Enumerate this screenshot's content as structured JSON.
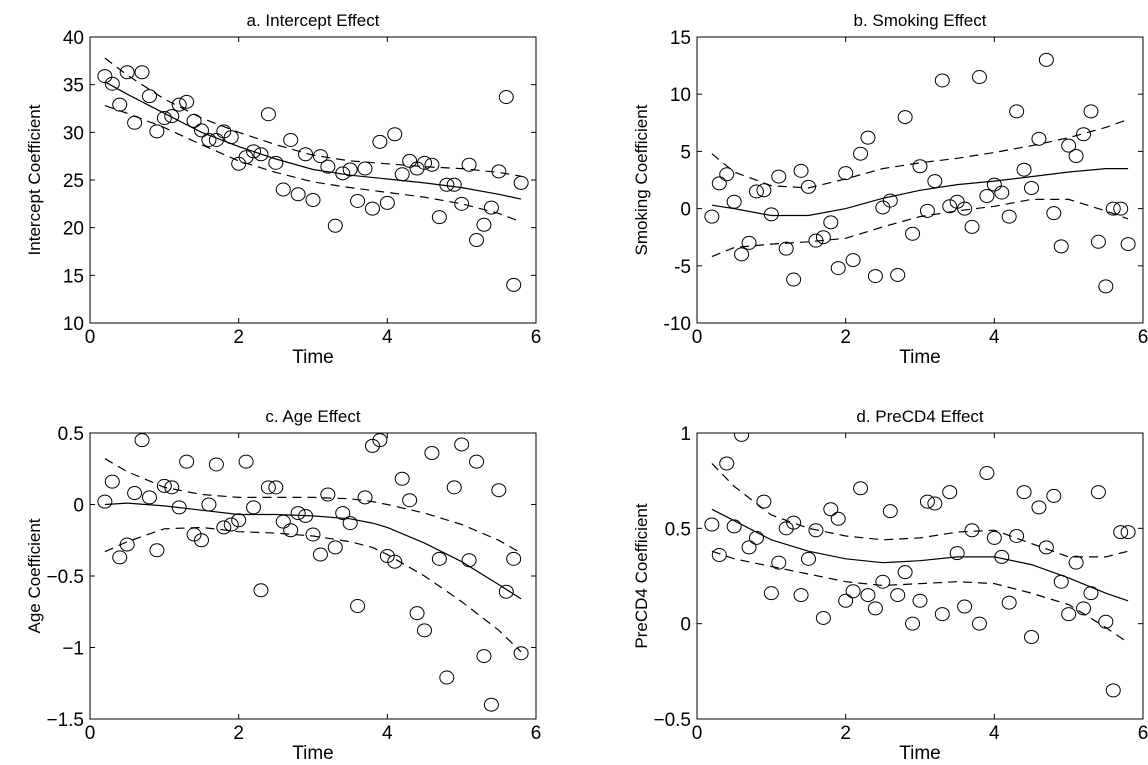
{
  "chart_data": [
    {
      "type": "scatter",
      "title": "a. Intercept Effect",
      "xlabel": "Time",
      "ylabel": "Intercept Coefficient",
      "xlim": [
        0,
        6
      ],
      "ylim": [
        10,
        40
      ],
      "xticks": [
        0,
        2,
        4,
        6
      ],
      "yticks": [
        10,
        15,
        20,
        25,
        30,
        35,
        40
      ],
      "grid": false,
      "points": {
        "x": [
          0.2,
          0.3,
          0.4,
          0.5,
          0.6,
          0.7,
          0.8,
          0.9,
          1.0,
          1.1,
          1.2,
          1.3,
          1.4,
          1.5,
          1.6,
          1.7,
          1.8,
          1.9,
          2.0,
          2.1,
          2.2,
          2.3,
          2.4,
          2.5,
          2.6,
          2.7,
          2.8,
          2.9,
          3.0,
          3.1,
          3.2,
          3.3,
          3.4,
          3.5,
          3.6,
          3.7,
          3.8,
          3.9,
          4.0,
          4.1,
          4.2,
          4.3,
          4.4,
          4.5,
          4.6,
          4.7,
          4.8,
          4.9,
          5.0,
          5.1,
          5.2,
          5.3,
          5.4,
          5.5,
          5.6,
          5.7,
          5.8
        ],
        "y": [
          35.9,
          35.1,
          32.9,
          36.3,
          31.0,
          36.3,
          33.8,
          30.1,
          31.5,
          31.7,
          32.9,
          33.2,
          31.2,
          30.2,
          29.2,
          29.2,
          30.1,
          29.5,
          26.7,
          27.4,
          28.0,
          27.7,
          31.9,
          26.8,
          24.0,
          29.2,
          23.5,
          27.7,
          22.9,
          27.5,
          26.4,
          20.2,
          25.7,
          26.1,
          22.8,
          26.2,
          22.0,
          29.0,
          22.6,
          29.8,
          25.6,
          27.0,
          26.2,
          26.8,
          26.6,
          21.1,
          24.5,
          24.5,
          22.5,
          26.6,
          18.7,
          20.3,
          22.1,
          25.9,
          33.7,
          14.0,
          24.7
        ]
      },
      "series": [
        {
          "style": "solid",
          "x": [
            0.2,
            0.5,
            1.0,
            1.5,
            2.0,
            2.5,
            3.0,
            3.5,
            4.0,
            4.5,
            5.0,
            5.5,
            5.8
          ],
          "y": [
            35.3,
            34.0,
            32.0,
            30.0,
            28.5,
            27.2,
            26.1,
            25.5,
            25.1,
            24.7,
            24.2,
            23.5,
            23.0
          ]
        },
        {
          "style": "dashed",
          "x": [
            0.2,
            0.5,
            1.0,
            1.5,
            2.0,
            2.5,
            3.0,
            3.5,
            4.0,
            4.5,
            5.0,
            5.5,
            5.8
          ],
          "y": [
            37.8,
            36.0,
            33.5,
            31.5,
            30.0,
            28.7,
            27.6,
            27.0,
            26.7,
            26.4,
            26.2,
            25.8,
            25.4
          ]
        },
        {
          "style": "dashed",
          "x": [
            0.2,
            0.5,
            1.0,
            1.5,
            2.0,
            2.5,
            3.0,
            3.5,
            4.0,
            4.5,
            5.0,
            5.5,
            5.8
          ],
          "y": [
            32.8,
            32.0,
            30.5,
            28.7,
            27.0,
            25.8,
            24.8,
            24.2,
            23.7,
            23.2,
            22.5,
            21.5,
            20.6
          ]
        }
      ]
    },
    {
      "type": "scatter",
      "title": "b. Smoking Effect",
      "xlabel": "Time",
      "ylabel": "Smoking Coefficient",
      "xlim": [
        0,
        6
      ],
      "ylim": [
        -10,
        15
      ],
      "xticks": [
        0,
        2,
        4,
        6
      ],
      "yticks": [
        -10,
        -5,
        0,
        5,
        10,
        15
      ],
      "grid": false,
      "points": {
        "x": [
          0.2,
          0.3,
          0.4,
          0.5,
          0.6,
          0.7,
          0.8,
          0.9,
          1.0,
          1.1,
          1.2,
          1.3,
          1.4,
          1.5,
          1.6,
          1.7,
          1.8,
          1.9,
          2.0,
          2.1,
          2.2,
          2.3,
          2.4,
          2.5,
          2.6,
          2.7,
          2.8,
          2.9,
          3.0,
          3.1,
          3.2,
          3.3,
          3.4,
          3.5,
          3.6,
          3.7,
          3.8,
          3.9,
          4.0,
          4.1,
          4.2,
          4.3,
          4.4,
          4.5,
          4.6,
          4.7,
          4.8,
          4.9,
          5.0,
          5.1,
          5.2,
          5.3,
          5.4,
          5.5,
          5.6,
          5.7,
          5.8
        ],
        "y": [
          -0.7,
          2.2,
          3.0,
          0.6,
          -4.0,
          -3.0,
          1.5,
          1.6,
          -0.5,
          2.8,
          -3.5,
          -6.2,
          3.3,
          1.9,
          -2.8,
          -2.5,
          -1.2,
          -5.2,
          3.1,
          -4.5,
          4.8,
          6.2,
          -5.9,
          0.1,
          0.7,
          -5.8,
          8.0,
          -2.2,
          3.7,
          -0.2,
          2.4,
          11.2,
          0.2,
          0.6,
          0.0,
          -1.6,
          11.5,
          1.1,
          2.1,
          1.4,
          -0.7,
          8.5,
          3.4,
          1.8,
          6.1,
          13.0,
          -0.4,
          -3.3,
          5.5,
          4.6,
          6.5,
          8.5,
          -2.9,
          -6.8,
          0,
          0,
          -3.1
        ]
      },
      "series": [
        {
          "style": "solid",
          "x": [
            0.2,
            0.5,
            1.0,
            1.5,
            2.0,
            2.5,
            3.0,
            3.5,
            4.0,
            4.5,
            5.0,
            5.5,
            5.8
          ],
          "y": [
            0.3,
            0.0,
            -0.6,
            -0.6,
            0.0,
            0.9,
            1.6,
            2.1,
            2.4,
            2.8,
            3.2,
            3.5,
            3.5
          ]
        },
        {
          "style": "dashed",
          "x": [
            0.2,
            0.5,
            1.0,
            1.5,
            2.0,
            2.5,
            3.0,
            3.5,
            4.0,
            4.5,
            5.0,
            5.5,
            5.8
          ],
          "y": [
            4.8,
            3.2,
            2.0,
            1.8,
            2.6,
            3.5,
            4.0,
            4.4,
            4.9,
            5.5,
            6.2,
            7.1,
            7.8
          ]
        },
        {
          "style": "dashed",
          "x": [
            0.2,
            0.5,
            1.0,
            1.5,
            2.0,
            2.5,
            3.0,
            3.5,
            4.0,
            4.5,
            5.0,
            5.5,
            5.8
          ],
          "y": [
            -4.2,
            -3.4,
            -3.1,
            -2.9,
            -2.6,
            -1.6,
            -0.7,
            -0.2,
            0.2,
            0.8,
            0.8,
            -0.2,
            -0.9
          ]
        }
      ]
    },
    {
      "type": "scatter",
      "title": "c. Age  Effect",
      "xlabel": "Time",
      "ylabel": "Age Coefficient",
      "xlim": [
        0,
        6
      ],
      "ylim": [
        -1.5,
        0.5
      ],
      "xticks": [
        0,
        2,
        4,
        6
      ],
      "yticks": [
        -1.5,
        -1,
        -0.5,
        0,
        0.5
      ],
      "yticklabels": [
        "−1.5",
        "−1",
        "−0.5",
        "0",
        "0.5"
      ],
      "grid": false,
      "points": {
        "x": [
          0.2,
          0.3,
          0.4,
          0.5,
          0.6,
          0.7,
          0.8,
          0.9,
          1.0,
          1.1,
          1.2,
          1.3,
          1.4,
          1.5,
          1.6,
          1.7,
          1.8,
          1.9,
          2.0,
          2.1,
          2.2,
          2.3,
          2.4,
          2.5,
          2.6,
          2.7,
          2.8,
          2.9,
          3.0,
          3.1,
          3.2,
          3.3,
          3.4,
          3.5,
          3.6,
          3.7,
          3.8,
          3.9,
          4.0,
          4.1,
          4.2,
          4.3,
          4.4,
          4.5,
          4.6,
          4.7,
          4.8,
          4.9,
          5.0,
          5.1,
          5.2,
          5.3,
          5.4,
          5.5,
          5.6,
          5.7,
          5.8
        ],
        "y": [
          0.02,
          0.16,
          -0.37,
          -0.28,
          0.08,
          0.45,
          0.05,
          -0.32,
          0.13,
          0.12,
          -0.02,
          0.3,
          -0.21,
          -0.25,
          0.0,
          0.28,
          -0.16,
          -0.14,
          -0.11,
          0.3,
          -0.02,
          -0.6,
          0.12,
          0.12,
          -0.12,
          -0.18,
          -0.06,
          -0.08,
          -0.21,
          -0.35,
          0.07,
          -0.3,
          -0.06,
          -0.13,
          -0.71,
          0.05,
          0.41,
          0.45,
          -0.36,
          -0.4,
          0.18,
          0.03,
          -0.76,
          -0.88,
          0.36,
          -0.38,
          -1.21,
          0.12,
          0.42,
          -0.39,
          0.3,
          -1.06,
          -1.4,
          0.1,
          -0.61,
          -0.38,
          -1.04
        ]
      },
      "series": [
        {
          "style": "solid",
          "x": [
            0.2,
            0.5,
            1.0,
            1.5,
            2.0,
            2.5,
            3.0,
            3.5,
            3.8,
            4.0,
            4.5,
            5.0,
            5.5,
            5.8
          ],
          "y": [
            0.0,
            0.01,
            -0.01,
            -0.04,
            -0.07,
            -0.07,
            -0.08,
            -0.1,
            -0.13,
            -0.16,
            -0.27,
            -0.4,
            -0.56,
            -0.66
          ]
        },
        {
          "style": "dashed",
          "x": [
            0.2,
            0.5,
            1.0,
            1.5,
            2.0,
            2.5,
            3.0,
            3.5,
            3.8,
            4.0,
            4.5,
            5.0,
            5.5,
            5.8
          ],
          "y": [
            0.32,
            0.23,
            0.12,
            0.07,
            0.05,
            0.05,
            0.05,
            0.04,
            0.02,
            0.0,
            -0.06,
            -0.14,
            -0.25,
            -0.34
          ]
        },
        {
          "style": "dashed",
          "x": [
            0.2,
            0.5,
            1.0,
            1.5,
            2.0,
            2.5,
            3.0,
            3.5,
            3.8,
            4.0,
            4.5,
            5.0,
            5.5,
            5.8
          ],
          "y": [
            -0.33,
            -0.26,
            -0.17,
            -0.16,
            -0.19,
            -0.2,
            -0.22,
            -0.26,
            -0.3,
            -0.35,
            -0.5,
            -0.68,
            -0.88,
            -1.03
          ]
        }
      ]
    },
    {
      "type": "scatter",
      "title": "d. PreCD4 Effect",
      "xlabel": "Time",
      "ylabel": "PreCD4 Coefficient",
      "xlim": [
        0,
        6
      ],
      "ylim": [
        -0.5,
        1
      ],
      "xticks": [
        0,
        2,
        4,
        6
      ],
      "yticks": [
        -0.5,
        0,
        0.5,
        1
      ],
      "yticklabels": [
        "−0.5",
        "0",
        "0.5",
        "1"
      ],
      "grid": false,
      "points": {
        "x": [
          0.2,
          0.3,
          0.4,
          0.5,
          0.6,
          0.7,
          0.8,
          0.9,
          1.0,
          1.1,
          1.2,
          1.3,
          1.4,
          1.5,
          1.6,
          1.7,
          1.8,
          1.9,
          2.0,
          2.1,
          2.2,
          2.3,
          2.4,
          2.5,
          2.6,
          2.7,
          2.8,
          2.9,
          3.0,
          3.1,
          3.2,
          3.3,
          3.4,
          3.5,
          3.6,
          3.7,
          3.8,
          3.9,
          4.0,
          4.1,
          4.2,
          4.3,
          4.4,
          4.5,
          4.6,
          4.7,
          4.8,
          4.9,
          5.0,
          5.1,
          5.2,
          5.3,
          5.4,
          5.5,
          5.6,
          5.7,
          5.8
        ],
        "y": [
          0.52,
          0.36,
          0.84,
          0.51,
          0.99,
          0.4,
          0.45,
          0.64,
          0.16,
          0.32,
          0.5,
          0.53,
          0.15,
          0.34,
          0.49,
          0.03,
          0.6,
          0.55,
          0.12,
          0.17,
          0.71,
          0.15,
          0.08,
          0.22,
          0.59,
          0.15,
          0.27,
          0.0,
          0.12,
          0.64,
          0.63,
          0.05,
          0.69,
          0.37,
          0.09,
          0.49,
          0.0,
          0.79,
          0.45,
          0.35,
          0.11,
          0.46,
          0.69,
          -0.07,
          0.61,
          0.4,
          0.67,
          0.22,
          0.05,
          0.32,
          0.08,
          0.16,
          0.69,
          0.01,
          -0.35,
          0.48,
          0.48
        ]
      },
      "series": [
        {
          "style": "solid",
          "x": [
            0.2,
            0.5,
            1.0,
            1.5,
            2.0,
            2.5,
            3.0,
            3.5,
            4.0,
            4.5,
            5.0,
            5.5,
            5.8
          ],
          "y": [
            0.6,
            0.54,
            0.44,
            0.38,
            0.34,
            0.32,
            0.33,
            0.35,
            0.35,
            0.31,
            0.24,
            0.16,
            0.12
          ]
        },
        {
          "style": "dashed",
          "x": [
            0.2,
            0.5,
            1.0,
            1.5,
            2.0,
            2.5,
            3.0,
            3.5,
            4.0,
            4.5,
            5.0,
            5.5,
            5.8
          ],
          "y": [
            0.84,
            0.72,
            0.57,
            0.5,
            0.46,
            0.44,
            0.45,
            0.48,
            0.49,
            0.42,
            0.35,
            0.35,
            0.38
          ]
        },
        {
          "style": "dashed",
          "x": [
            0.2,
            0.5,
            1.0,
            1.5,
            2.0,
            2.5,
            3.0,
            3.5,
            4.0,
            4.5,
            5.0,
            5.5,
            5.8
          ],
          "y": [
            0.38,
            0.34,
            0.3,
            0.26,
            0.22,
            0.2,
            0.21,
            0.22,
            0.21,
            0.16,
            0.1,
            -0.02,
            -0.1
          ]
        }
      ]
    }
  ]
}
